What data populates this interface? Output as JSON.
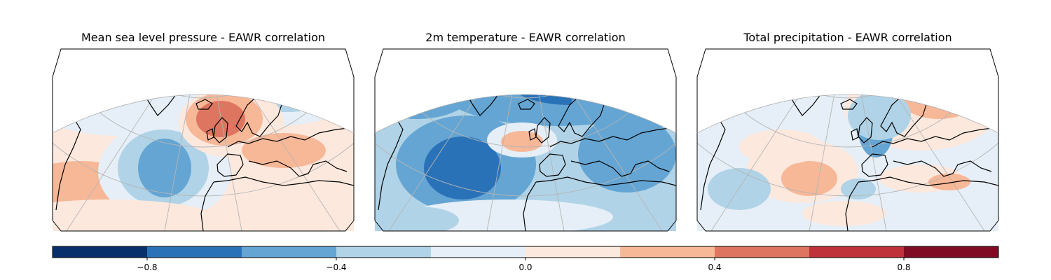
{
  "figure": {
    "panels": [
      {
        "title": "Mean sea level pressure - EAWR correlation"
      },
      {
        "title": "2m temperature - EAWR correlation"
      },
      {
        "title": "Total precipitation - EAWR correlation"
      }
    ],
    "colorbar": {
      "ticks": [
        "−0.8",
        "−0.4",
        "0.0",
        "0.4",
        "0.8"
      ],
      "bins": [
        -1.0,
        -0.8,
        -0.6,
        -0.4,
        -0.2,
        0.0,
        0.2,
        0.4,
        0.6,
        0.8,
        1.0
      ],
      "colors": [
        "#08306b",
        "#2a72b8",
        "#64a5d3",
        "#b0d3e7",
        "#e6eff7",
        "#fde8dd",
        "#f7b898",
        "#de7560",
        "#c0323a",
        "#800c24"
      ]
    }
  }
}
